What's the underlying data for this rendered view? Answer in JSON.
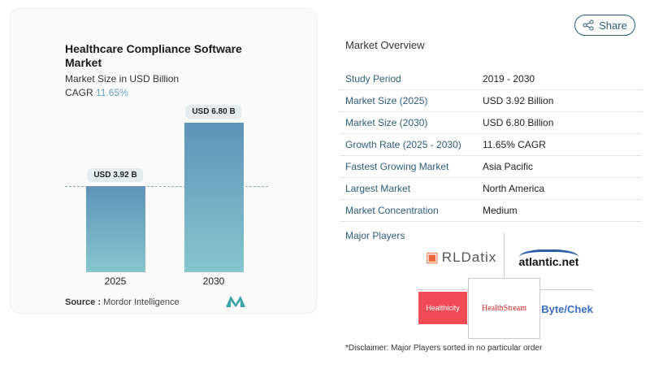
{
  "chart": {
    "title": "Healthcare Compliance Software Market",
    "subtitle": "Market Size in USD Billion",
    "cagr_label": "CAGR",
    "cagr_value": "11.65%",
    "source_label": "Source :",
    "source_value": "Mordor Intelligence"
  },
  "chart_data": {
    "type": "bar",
    "categories": [
      "2025",
      "2030"
    ],
    "values": [
      3.92,
      6.8
    ],
    "data_labels": [
      "USD 3.92 B",
      "USD 6.80 B"
    ],
    "title": "Healthcare Compliance Software Market",
    "ylabel": "Market Size in USD Billion",
    "colors": [
      "#5f93b8",
      "#85c6cf"
    ]
  },
  "share": {
    "label": "Share",
    "icon": "share-icon"
  },
  "overview": {
    "title": "Market Overview",
    "rows": [
      {
        "label": "Study Period",
        "value": "2019 - 2030"
      },
      {
        "label": "Market Size (2025)",
        "value": "USD 3.92 Billion"
      },
      {
        "label": "Market Size (2030)",
        "value": "USD 6.80 Billion"
      },
      {
        "label": "Growth Rate (2025 - 2030)",
        "value": "11.65% CAGR"
      },
      {
        "label": "Fastest Growing Market",
        "value": "Asia Pacific"
      },
      {
        "label": "Largest Market",
        "value": "North America"
      },
      {
        "label": "Market Concentration",
        "value": "Medium"
      }
    ]
  },
  "players": {
    "title": "Major Players",
    "logos": [
      "RLDatix",
      "atlantic.net",
      "Healthicity",
      "HealthStream",
      "Byte/Chek"
    ]
  },
  "disclaimer": "*Disclaimer: Major Players sorted in no particular order"
}
